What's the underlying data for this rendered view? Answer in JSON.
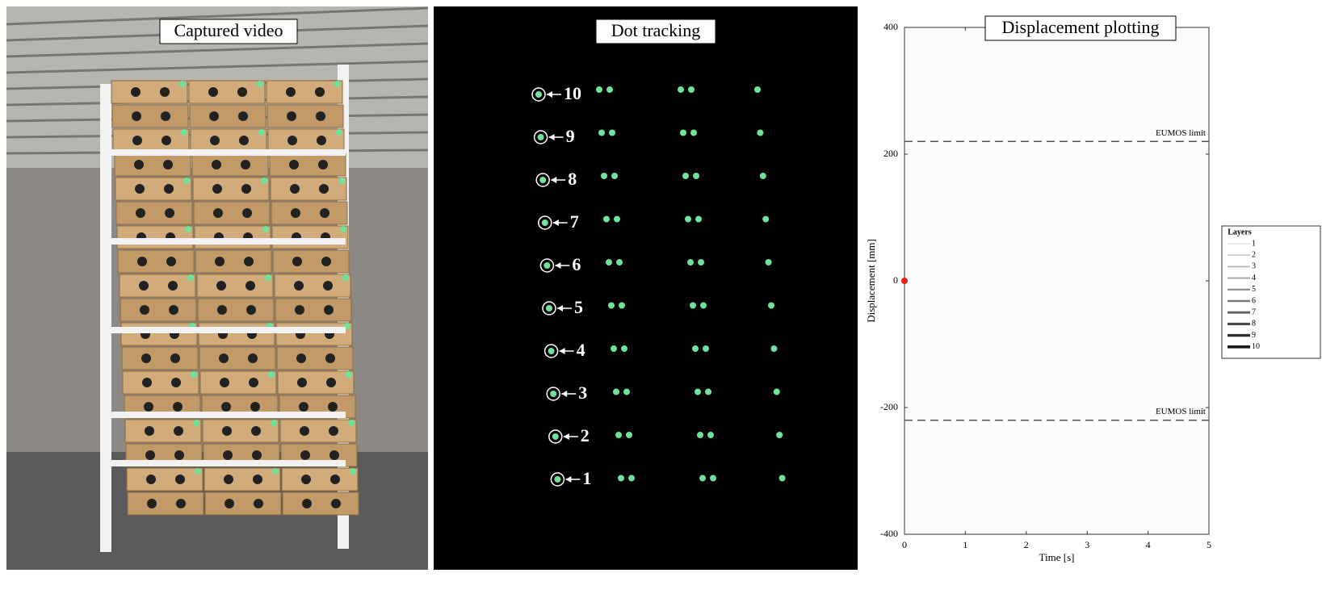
{
  "panels": {
    "video": {
      "title": "Captured video"
    },
    "tracking": {
      "title": "Dot tracking",
      "labels": [
        "10",
        "9",
        "8",
        "7",
        "6",
        "5",
        "4",
        "3",
        "2",
        "1"
      ]
    }
  },
  "chart_data": {
    "type": "line",
    "title": "Displacement plotting",
    "xlabel": "Time [s]",
    "ylabel": "Displacement [mm]",
    "xlim": [
      0,
      5
    ],
    "xticks": [
      0,
      1,
      2,
      3,
      4,
      5
    ],
    "ylim": [
      -400,
      400
    ],
    "yticks": [
      -400,
      -200,
      0,
      200,
      400
    ],
    "x": [
      0
    ],
    "series": [
      {
        "name": "1",
        "color": "#d0d0d0",
        "values": [
          0
        ]
      },
      {
        "name": "2",
        "color": "#c0c0c0",
        "values": [
          0
        ]
      },
      {
        "name": "3",
        "color": "#b0b0b0",
        "values": [
          0
        ]
      },
      {
        "name": "4",
        "color": "#a0a0a0",
        "values": [
          0
        ]
      },
      {
        "name": "5",
        "color": "#8c8c8c",
        "values": [
          0
        ]
      },
      {
        "name": "6",
        "color": "#787878",
        "values": [
          0
        ]
      },
      {
        "name": "7",
        "color": "#606060",
        "values": [
          0
        ]
      },
      {
        "name": "8",
        "color": "#484848",
        "values": [
          0
        ]
      },
      {
        "name": "9",
        "color": "#303030",
        "values": [
          0
        ]
      },
      {
        "name": "10",
        "color": "#181818",
        "values": [
          0
        ]
      }
    ],
    "legend_title": "Layers",
    "reference_lines": [
      {
        "value": 220,
        "label": "EUMOS limit"
      },
      {
        "value": -220,
        "label": "EUMOS limit"
      }
    ],
    "current_point": {
      "x": 0,
      "y": 0,
      "color": "#e8201c"
    }
  }
}
